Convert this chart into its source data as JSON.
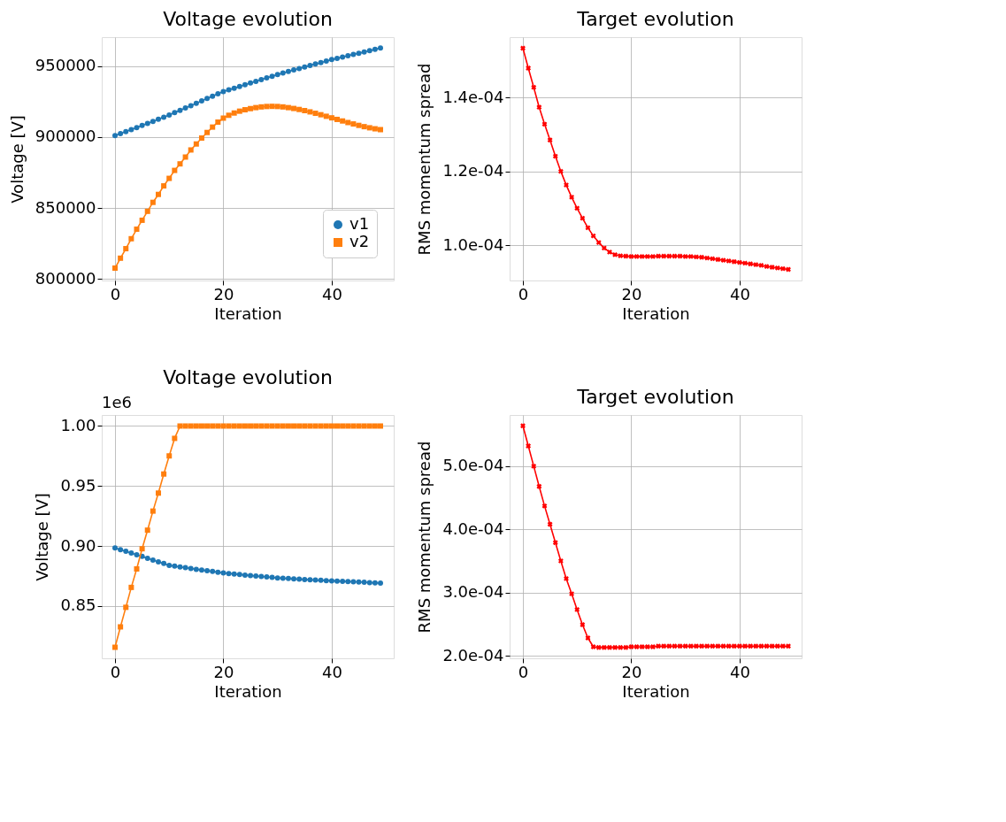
{
  "chart_data": [
    {
      "type": "line",
      "title": "Voltage evolution",
      "xlabel": "Iteration",
      "ylabel": "Voltage [V]",
      "x": [
        0,
        1,
        2,
        3,
        4,
        5,
        6,
        7,
        8,
        9,
        10,
        11,
        12,
        13,
        14,
        15,
        16,
        17,
        18,
        19,
        20,
        21,
        22,
        23,
        24,
        25,
        26,
        27,
        28,
        29,
        30,
        31,
        32,
        33,
        34,
        35,
        36,
        37,
        38,
        39,
        40,
        41,
        42,
        43,
        44,
        45,
        46,
        47,
        48,
        49
      ],
      "series": [
        {
          "name": "v1",
          "color": "#1f77b4",
          "marker": "circle",
          "values": [
            901000,
            902400,
            903800,
            905200,
            906600,
            908100,
            909500,
            911000,
            912500,
            914000,
            915500,
            917200,
            918800,
            920500,
            922100,
            923800,
            925400,
            927100,
            928700,
            930400,
            932000,
            933200,
            934400,
            935600,
            936800,
            938000,
            939200,
            940400,
            941600,
            942800,
            944000,
            945100,
            946100,
            947200,
            948200,
            949300,
            950300,
            951400,
            952400,
            953500,
            954500,
            955400,
            956300,
            957200,
            958100,
            959000,
            959900,
            960800,
            961700,
            962600
          ]
        },
        {
          "name": "v2",
          "color": "#ff7f0e",
          "marker": "square",
          "values": [
            807700,
            814700,
            821400,
            828400,
            835100,
            841400,
            847700,
            854000,
            859600,
            865600,
            870900,
            876500,
            881100,
            885900,
            890900,
            895100,
            899300,
            903200,
            907000,
            910500,
            913300,
            915300,
            916900,
            918200,
            919200,
            920000,
            920700,
            921200,
            921500,
            921600,
            921500,
            921200,
            920700,
            920100,
            919400,
            918600,
            917700,
            916700,
            915700,
            914600,
            913500,
            912400,
            911300,
            910200,
            909200,
            908200,
            907300,
            906500,
            905800,
            905200
          ]
        }
      ],
      "xlim": [
        -2.45,
        51.45
      ],
      "xticks": [
        0,
        20,
        40
      ],
      "ylim": [
        799000,
        970300
      ],
      "yticks": [
        800000,
        850000,
        900000,
        950000
      ],
      "grid": true,
      "legend": "bottom right"
    },
    {
      "type": "line",
      "title": "Target evolution",
      "xlabel": "Iteration",
      "ylabel": "RMS momentum spread",
      "x": [
        0,
        1,
        2,
        3,
        4,
        5,
        6,
        7,
        8,
        9,
        10,
        11,
        12,
        13,
        14,
        15,
        16,
        17,
        18,
        19,
        20,
        21,
        22,
        23,
        24,
        25,
        26,
        27,
        28,
        29,
        30,
        31,
        32,
        33,
        34,
        35,
        36,
        37,
        38,
        39,
        40,
        41,
        42,
        43,
        44,
        45,
        46,
        47,
        48,
        49
      ],
      "series": [
        {
          "color": "#ff0000",
          "marker": "cross",
          "values": [
            0.0001534,
            0.000148,
            0.0001428,
            0.0001374,
            0.0001328,
            0.0001285,
            0.0001241,
            0.00012,
            0.0001163,
            0.000113,
            0.00011,
            0.0001073,
            0.0001047,
            0.0001025,
            0.0001007,
            9.92e-05,
            9.81e-05,
            9.74e-05,
            9.71e-05,
            9.7e-05,
            9.69e-05,
            9.69e-05,
            9.69e-05,
            9.69e-05,
            9.69e-05,
            9.7e-05,
            9.7e-05,
            9.7e-05,
            9.7e-05,
            9.7e-05,
            9.69e-05,
            9.69e-05,
            9.68e-05,
            9.67e-05,
            9.65e-05,
            9.63e-05,
            9.61e-05,
            9.59e-05,
            9.57e-05,
            9.55e-05,
            9.53e-05,
            9.51e-05,
            9.49e-05,
            9.47e-05,
            9.45e-05,
            9.42e-05,
            9.4e-05,
            9.38e-05,
            9.36e-05,
            9.34e-05
          ]
        }
      ],
      "xlim": [
        -2.45,
        51.45
      ],
      "xticks": [
        0,
        20,
        40
      ],
      "ylim": [
        9.04e-05,
        0.0001564
      ],
      "yticks": [
        {
          "value": 0.0001,
          "label": "1.0e-04"
        },
        {
          "value": 0.00012,
          "label": "1.2e-04"
        },
        {
          "value": 0.00014,
          "label": "1.4e-04"
        }
      ],
      "grid": true
    },
    {
      "type": "line",
      "title": "Voltage evolution",
      "xlabel": "Iteration",
      "ylabel": "Voltage [V]",
      "annotations": [
        "1e6"
      ],
      "x": [
        0,
        1,
        2,
        3,
        4,
        5,
        6,
        7,
        8,
        9,
        10,
        11,
        12,
        13,
        14,
        15,
        16,
        17,
        18,
        19,
        20,
        21,
        22,
        23,
        24,
        25,
        26,
        27,
        28,
        29,
        30,
        31,
        32,
        33,
        34,
        35,
        36,
        37,
        38,
        39,
        40,
        41,
        42,
        43,
        44,
        45,
        46,
        47,
        48,
        49
      ],
      "series": [
        {
          "name": "v1",
          "color": "#1f77b4",
          "marker": "circle",
          "values": [
            0.8984,
            0.897,
            0.8956,
            0.8942,
            0.8927,
            0.8913,
            0.8898,
            0.8883,
            0.8868,
            0.8854,
            0.8839,
            0.8832,
            0.8825,
            0.8819,
            0.8812,
            0.8806,
            0.88,
            0.8794,
            0.8788,
            0.8782,
            0.8776,
            0.8771,
            0.8767,
            0.8762,
            0.8758,
            0.8754,
            0.875,
            0.8746,
            0.8742,
            0.8738,
            0.8734,
            0.8731,
            0.8729,
            0.8726,
            0.8724,
            0.8721,
            0.8719,
            0.8716,
            0.8714,
            0.8712,
            0.871,
            0.8708,
            0.8706,
            0.8704,
            0.8702,
            0.87,
            0.8698,
            0.8695,
            0.8693,
            0.8691
          ]
        },
        {
          "name": "v2",
          "color": "#ff7f0e",
          "marker": "square",
          "values": [
            0.8156,
            0.8326,
            0.8489,
            0.8655,
            0.8809,
            0.8977,
            0.9132,
            0.9291,
            0.9441,
            0.96,
            0.9751,
            0.9897,
            1,
            1,
            1,
            1,
            1,
            1,
            1,
            1,
            1,
            1,
            1,
            1,
            1,
            1,
            1,
            1,
            1,
            1,
            1,
            1,
            1,
            1,
            1,
            1,
            1,
            1,
            1,
            1,
            1,
            1,
            1,
            1,
            1,
            1,
            1,
            1,
            1,
            1
          ]
        }
      ],
      "xlim": [
        -2.45,
        51.45
      ],
      "xticks": [
        0,
        20,
        40
      ],
      "ylim": [
        0.8064,
        1.0092
      ],
      "yticks": [
        {
          "value": 0.85,
          "label": "0.85"
        },
        {
          "value": 0.9,
          "label": "0.90"
        },
        {
          "value": 0.95,
          "label": "0.95"
        },
        {
          "value": 1,
          "label": "1.00"
        }
      ],
      "grid": true,
      "legend": "right"
    },
    {
      "type": "line",
      "title": "Target evolution",
      "xlabel": "Iteration",
      "ylabel": "RMS momentum spread",
      "x": [
        0,
        1,
        2,
        3,
        4,
        5,
        6,
        7,
        8,
        9,
        10,
        11,
        12,
        13,
        14,
        15,
        16,
        17,
        18,
        19,
        20,
        21,
        22,
        23,
        24,
        25,
        26,
        27,
        28,
        29,
        30,
        31,
        32,
        33,
        34,
        35,
        36,
        37,
        38,
        39,
        40,
        41,
        42,
        43,
        44,
        45,
        46,
        47,
        48,
        49
      ],
      "series": [
        {
          "color": "#ff0000",
          "marker": "cross",
          "values": [
            0.000564,
            0.000532,
            0.0005,
            0.000468,
            0.000437,
            0.000408,
            0.000379,
            0.00035,
            0.000322,
            0.000298,
            0.000273,
            0.000249,
            0.000228,
            0.000214,
            0.000213,
            0.000213,
            0.000213,
            0.000213,
            0.000213,
            0.000213,
            0.000214,
            0.000214,
            0.000214,
            0.000214,
            0.000214,
            0.000215,
            0.000215,
            0.000215,
            0.000215,
            0.000215,
            0.000215,
            0.000215,
            0.000215,
            0.000215,
            0.000215,
            0.000215,
            0.000215,
            0.000215,
            0.000215,
            0.000215,
            0.000215,
            0.000215,
            0.000215,
            0.000215,
            0.000215,
            0.000215,
            0.000215,
            0.000215,
            0.000215,
            0.000215
          ]
        }
      ],
      "xlim": [
        -2.45,
        51.45
      ],
      "xticks": [
        0,
        20,
        40
      ],
      "ylim": [
        0.0001958,
        0.0005811
      ],
      "yticks": [
        {
          "value": 0.0002,
          "label": "2.0e-04"
        },
        {
          "value": 0.0003,
          "label": "3.0e-04"
        },
        {
          "value": 0.0004,
          "label": "4.0e-04"
        },
        {
          "value": 0.0005,
          "label": "5.0e-04"
        }
      ],
      "grid": true
    }
  ]
}
